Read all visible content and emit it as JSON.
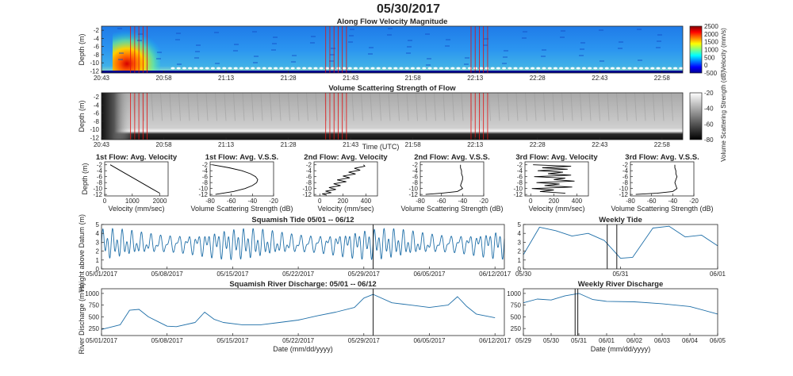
{
  "figure": {
    "title": "05/30/2017"
  },
  "colors": {
    "line_blue": "#1f6fa8",
    "axis": "#262626",
    "marker_red": "#e01010",
    "marker_black": "#000000"
  },
  "chart_data": [
    {
      "id": "velocity",
      "type": "heatmap",
      "title": "Along Flow Velocity Magnitude",
      "ylabel": "Depth (m)",
      "yticks": [
        "-2",
        "-4",
        "-6",
        "-8",
        "-10",
        "-12"
      ],
      "ylim": [
        -12.5,
        -1
      ],
      "xticks": [
        "20:43",
        "20:58",
        "21:13",
        "21:28",
        "21:43",
        "21:58",
        "22:13",
        "22:28",
        "22:43",
        "22:58"
      ],
      "colorbar": {
        "label": "Velocity (mm/s)",
        "ticks": [
          "2500",
          "2000",
          "1500",
          "1000",
          "500",
          "0",
          "-500"
        ],
        "range": [
          -500,
          2500
        ],
        "colormap": "jet"
      },
      "flow_marks": [
        "20:50",
        "20:51",
        "20:52",
        "20:53",
        "20:54",
        "21:37",
        "21:38",
        "21:39",
        "21:40",
        "21:41",
        "21:42",
        "22:12",
        "22:13",
        "22:14",
        "22:15",
        "22:16"
      ]
    },
    {
      "id": "vss",
      "type": "heatmap",
      "title": "Volume Scattering Strength of Flow",
      "ylabel": "Depth (m)",
      "yticks": [
        "-2",
        "-4",
        "-6",
        "-8",
        "-10",
        "-12"
      ],
      "ylim": [
        -12.5,
        -1
      ],
      "xticks": [
        "20:43",
        "20:58",
        "21:13",
        "21:28",
        "21:43",
        "21:58",
        "22:13",
        "22:28",
        "22:43",
        "22:58"
      ],
      "xlabel": "Time (UTC)",
      "colorbar": {
        "label": "Volume Scattering Strength (dB)",
        "ticks": [
          "-20",
          "-40",
          "-60",
          "-80"
        ],
        "range": [
          -80,
          -20
        ],
        "colormap": "gray"
      },
      "flow_marks": [
        "20:50",
        "20:51",
        "20:52",
        "20:53",
        "20:54",
        "21:37",
        "21:38",
        "21:39",
        "21:40",
        "21:41",
        "21:42",
        "22:12",
        "22:13",
        "22:14",
        "22:15",
        "22:16"
      ]
    },
    {
      "id": "p1v",
      "type": "line",
      "title": "1st Flow: Avg. Velocity",
      "xlabel": "Velocity (mm/sec)",
      "ylabel": "Depth (m)",
      "xticks": [
        "0",
        "1000",
        "2000"
      ],
      "yticks": [
        "-2",
        "-4",
        "-6",
        "-8",
        "-10",
        "-12"
      ],
      "xlim": [
        0,
        2300
      ],
      "ylim": [
        -12.5,
        -1
      ],
      "x": [
        200,
        500,
        800,
        1100,
        1400,
        1700,
        2000
      ],
      "y": [
        -2,
        -3.6,
        -5.2,
        -6.8,
        -8.4,
        -10.0,
        -11.6
      ]
    },
    {
      "id": "p1s",
      "type": "line",
      "title": "1st Flow: Avg. V.S.S.",
      "xlabel": "Volume Scattering Strength (dB)",
      "xticks": [
        "-80",
        "-60",
        "-40",
        "-20"
      ],
      "yticks": [
        "-2",
        "-4",
        "-6",
        "-8",
        "-10",
        "-12"
      ],
      "xlim": [
        -80,
        -20
      ],
      "ylim": [
        -12.5,
        -1
      ],
      "x": [
        -78,
        -62,
        -50,
        -42,
        -37,
        -35,
        -36,
        -40,
        -47,
        -58,
        -75
      ],
      "y": [
        -2,
        -3,
        -4,
        -5,
        -6,
        -7,
        -8,
        -9,
        -10,
        -11,
        -12
      ]
    },
    {
      "id": "p2v",
      "type": "line",
      "title": "2nd Flow: Avg. Velocity",
      "xlabel": "Velocity (mm/sec)",
      "xticks": [
        "0",
        "200",
        "400"
      ],
      "yticks": [
        "-2",
        "-4",
        "-6",
        "-8",
        "-10",
        "-12"
      ],
      "xlim": [
        -50,
        500
      ],
      "ylim": [
        -12.5,
        -1
      ],
      "x": [
        380,
        390,
        300,
        350,
        250,
        310,
        200,
        260,
        150,
        230,
        120,
        180,
        80,
        140,
        50,
        100,
        20,
        60
      ],
      "y": [
        -2,
        -2.5,
        -3.2,
        -3.8,
        -4.5,
        -5.1,
        -5.8,
        -6.4,
        -7.1,
        -7.7,
        -8.4,
        -9.0,
        -9.7,
        -10.3,
        -10.9,
        -11.4,
        -11.8,
        -12.2
      ]
    },
    {
      "id": "p2s",
      "type": "line",
      "title": "2nd Flow: Avg. V.S.S.",
      "xlabel": "Volume Scattering Strength (dB)",
      "xticks": [
        "-80",
        "-60",
        "-40",
        "-20"
      ],
      "yticks": [
        "-2",
        "-4",
        "-6",
        "-8",
        "-10",
        "-12"
      ],
      "xlim": [
        -80,
        -20
      ],
      "ylim": [
        -12.5,
        -1
      ],
      "x": [
        -42,
        -42,
        -41,
        -41,
        -40,
        -40,
        -41,
        -42,
        -40,
        -45,
        -60,
        -75
      ],
      "y": [
        -2,
        -3,
        -4,
        -5,
        -6,
        -7,
        -8,
        -9,
        -10,
        -11,
        -11.6,
        -12
      ]
    },
    {
      "id": "p3v",
      "type": "line",
      "title": "3rd Flow: Avg. Velocity",
      "xlabel": "Velocity (mm/sec)",
      "xticks": [
        "0",
        "200",
        "400"
      ],
      "yticks": [
        "-2",
        "-4",
        "-6",
        "-8",
        "-10",
        "-12"
      ],
      "xlim": [
        -50,
        500
      ],
      "ylim": [
        -12.5,
        -1
      ],
      "x": [
        20,
        350,
        100,
        320,
        60,
        280,
        150,
        350,
        30,
        300,
        200,
        380,
        50,
        250,
        120,
        360,
        10,
        200,
        80,
        300
      ],
      "y": [
        -2,
        -2.5,
        -3,
        -3.5,
        -4,
        -4.5,
        -5,
        -5.5,
        -6,
        -6.5,
        -7,
        -7.5,
        -8,
        -8.5,
        -9,
        -9.5,
        -10,
        -10.5,
        -11,
        -11.6
      ]
    },
    {
      "id": "p3s",
      "type": "line",
      "title": "3rd Flow: Avg. V.S.S.",
      "xlabel": "Volume Scattering Strength (dB)",
      "xticks": [
        "-80",
        "-60",
        "-40",
        "-20"
      ],
      "yticks": [
        "-2",
        "-4",
        "-6",
        "-8",
        "-10",
        "-12"
      ],
      "xlim": [
        -80,
        -20
      ],
      "ylim": [
        -12.5,
        -1
      ],
      "x": [
        -38,
        -38,
        -37,
        -37,
        -36,
        -37,
        -38,
        -37,
        -36,
        -40,
        -55,
        -75
      ],
      "y": [
        -2,
        -3,
        -4,
        -5,
        -6,
        -7,
        -8,
        -9,
        -10,
        -11,
        -11.6,
        -12
      ]
    },
    {
      "id": "tide",
      "type": "line",
      "title": "Squamish Tide 05/01 -- 06/12",
      "ylabel": "Height above Datum (m)",
      "xticks": [
        "05/01/2017",
        "05/08/2017",
        "05/15/2017",
        "05/22/2017",
        "05/29/2017",
        "06/05/2017",
        "06/12/2017"
      ],
      "yticks": [
        "0",
        "1",
        "2",
        "3",
        "4",
        "5"
      ],
      "xlim": [
        "2017-05-01",
        "2017-06-13"
      ],
      "ylim": [
        0,
        5
      ],
      "mean": 2.8,
      "semidiurnal_amplitude": 1.2,
      "diurnal_amplitude": 0.7,
      "spring_neap_period_days": 14.8,
      "marker": "2017-05-30"
    },
    {
      "id": "wtide",
      "type": "line",
      "title": "Weekly Tide",
      "xticks": [
        "05/30",
        "05/31",
        "06/01"
      ],
      "yticks": [
        "0",
        "1",
        "2",
        "3",
        "4",
        "5"
      ],
      "xlim": [
        "2017-05-30",
        "2017-06-01"
      ],
      "ylim": [
        0,
        5
      ],
      "x": [
        "2017-05-30 00:00",
        "2017-05-30 04:00",
        "2017-05-30 08:00",
        "2017-05-30 12:00",
        "2017-05-30 16:00",
        "2017-05-30 20:00",
        "2017-05-31 00:00",
        "2017-05-31 03:00",
        "2017-05-31 08:00",
        "2017-05-31 12:00",
        "2017-05-31 16:00",
        "2017-05-31 20:00",
        "2017-06-01 00:00"
      ],
      "y": [
        1.6,
        4.7,
        4.3,
        3.7,
        4.0,
        3.2,
        1.2,
        1.3,
        4.6,
        4.8,
        3.6,
        3.8,
        2.6
      ],
      "markers": [
        "2017-05-30 20:43",
        "2017-05-30 23:05"
      ]
    },
    {
      "id": "discharge",
      "type": "line",
      "title": "Squamish River Discharge: 05/01 -- 06/12",
      "ylabel": "River Discharge (m³/s)",
      "xlabel": "Date (mm/dd/yyyy)",
      "xticks": [
        "05/01/2017",
        "05/08/2017",
        "05/15/2017",
        "05/22/2017",
        "05/29/2017",
        "06/05/2017",
        "06/12/2017"
      ],
      "yticks": [
        "250",
        "500",
        "750",
        "1000"
      ],
      "xlim": [
        "2017-05-01",
        "2017-06-13"
      ],
      "ylim": [
        100,
        1100
      ],
      "x": [
        "2017-05-01",
        "2017-05-03",
        "2017-05-04",
        "2017-05-05",
        "2017-05-06",
        "2017-05-07",
        "2017-05-08",
        "2017-05-09",
        "2017-05-11",
        "2017-05-12",
        "2017-05-13",
        "2017-05-14",
        "2017-05-16",
        "2017-05-18",
        "2017-05-20",
        "2017-05-22",
        "2017-05-24",
        "2017-05-26",
        "2017-05-28",
        "2017-05-29",
        "2017-05-30",
        "2017-06-01",
        "2017-06-03",
        "2017-06-05",
        "2017-06-07",
        "2017-06-08",
        "2017-06-09",
        "2017-06-10",
        "2017-06-12"
      ],
      "y": [
        230,
        330,
        640,
        660,
        500,
        400,
        300,
        290,
        380,
        600,
        450,
        380,
        330,
        330,
        380,
        430,
        520,
        600,
        700,
        900,
        980,
        800,
        750,
        700,
        750,
        930,
        720,
        560,
        480
      ],
      "marker": "2017-05-30"
    },
    {
      "id": "wdischarge",
      "type": "line",
      "title": "Weekly River Discharge",
      "xlabel": "Date (mm/dd/yyyy)",
      "xticks": [
        "05/29",
        "05/30",
        "05/31",
        "06/01",
        "06/02",
        "06/03",
        "06/04",
        "06/05"
      ],
      "yticks": [
        "250",
        "500",
        "750",
        "1000"
      ],
      "xlim": [
        "2017-05-29",
        "2017-06-05"
      ],
      "ylim": [
        100,
        1100
      ],
      "x": [
        "2017-05-29 00:00",
        "2017-05-29 12:00",
        "2017-05-30 00:00",
        "2017-05-30 12:00",
        "2017-05-31 00:00",
        "2017-05-31 12:00",
        "2017-06-01 00:00",
        "2017-06-02 00:00",
        "2017-06-03 00:00",
        "2017-06-04 00:00",
        "2017-06-05 00:00"
      ],
      "y": [
        800,
        880,
        860,
        950,
        1000,
        870,
        830,
        820,
        780,
        720,
        560
      ],
      "markers": [
        "2017-05-30 20:43",
        "2017-05-30 23:05"
      ]
    }
  ]
}
